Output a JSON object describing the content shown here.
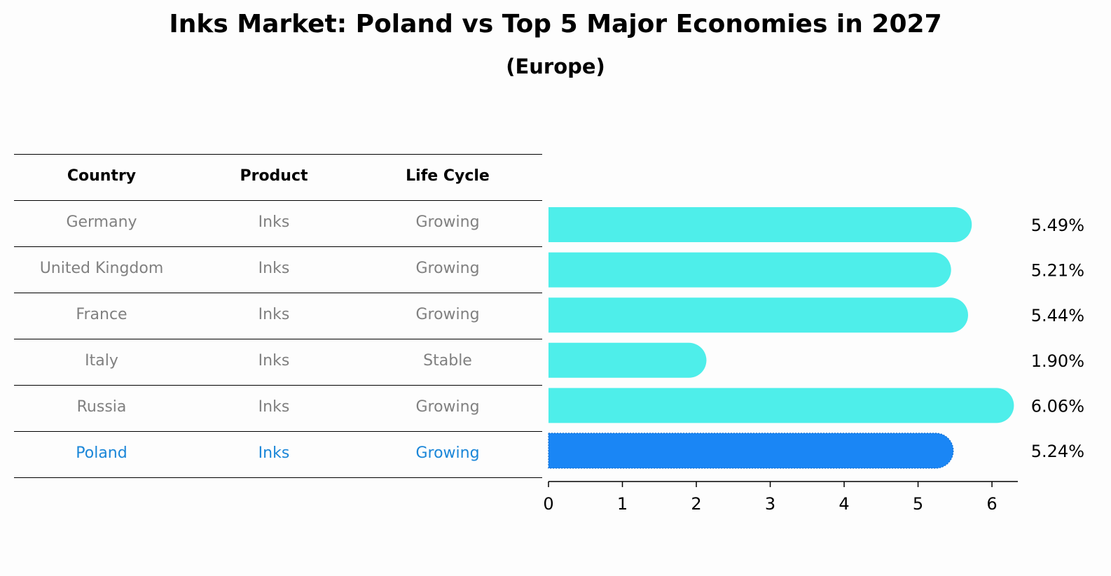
{
  "title": "Inks Market: Poland vs Top 5 Major Economies in 2027",
  "subtitle": "(Europe)",
  "table": {
    "headers": [
      "Country",
      "Product",
      "Life Cycle"
    ],
    "rows": [
      [
        "Germany",
        "Inks",
        "Growing"
      ],
      [
        "United Kingdom",
        "Inks",
        "Growing"
      ],
      [
        "France",
        "Inks",
        "Growing"
      ],
      [
        "Italy",
        "Inks",
        "Stable"
      ],
      [
        "Russia",
        "Inks",
        "Growing"
      ],
      [
        "Poland",
        "Inks",
        "Growing"
      ]
    ],
    "highlight_row": 5
  },
  "colors": {
    "bar": "#4eeeea",
    "highlight_bar": "#1a86f5",
    "highlight_text": "#1a86d8",
    "muted_text": "#808080"
  },
  "chart_data": {
    "type": "bar",
    "orientation": "horizontal",
    "categories": [
      "Germany",
      "United Kingdom",
      "France",
      "Italy",
      "Russia",
      "Poland"
    ],
    "values": [
      5.49,
      5.21,
      5.44,
      1.9,
      6.06,
      5.24
    ],
    "labels": [
      "5.49%",
      "5.21%",
      "5.44%",
      "1.90%",
      "6.06%",
      "5.24%"
    ],
    "xticks": [
      0,
      1,
      2,
      3,
      4,
      5,
      6
    ],
    "xlim": [
      0,
      6.35
    ],
    "highlight_index": 5,
    "grid": false
  }
}
